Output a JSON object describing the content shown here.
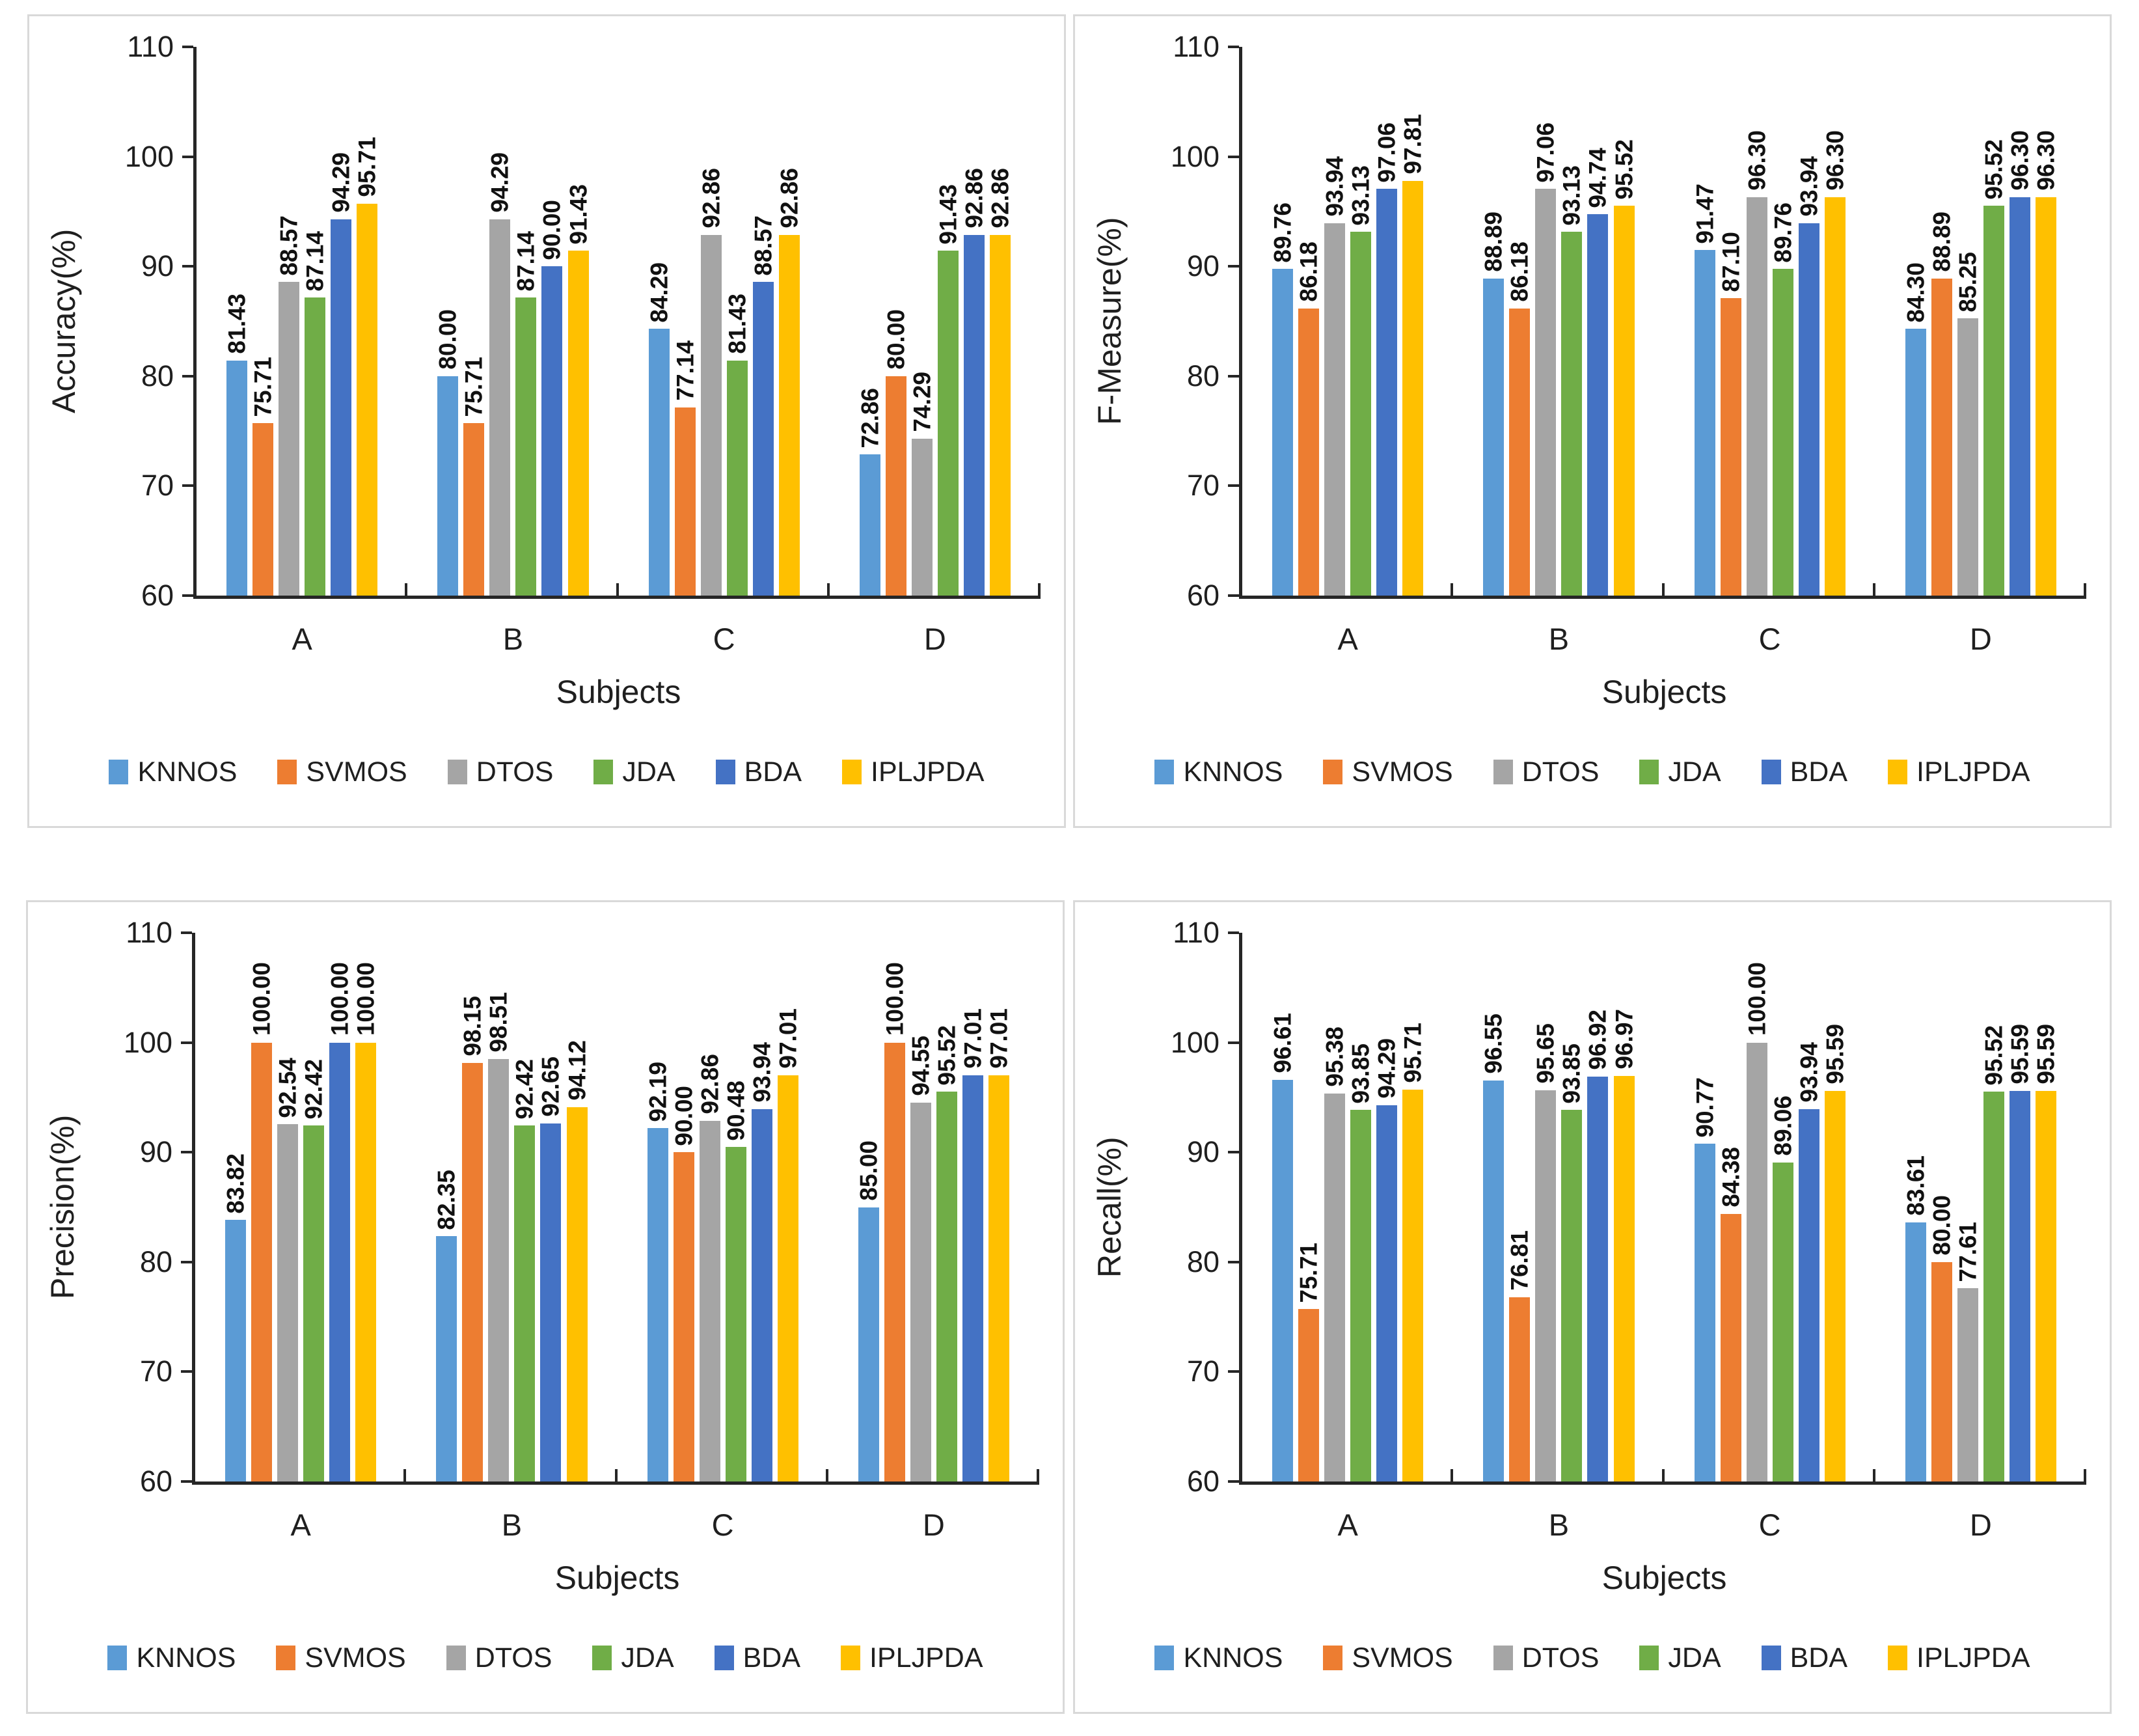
{
  "figure": {
    "x_axis_label": "Subjects",
    "categories": [
      "A",
      "B",
      "C",
      "D"
    ],
    "y_ticks": [
      "110",
      "100",
      "90",
      "80",
      "70",
      "60"
    ],
    "ylim": [
      60,
      110
    ],
    "series_names": [
      "KNNOS",
      "SVMOS",
      "DTOS",
      "JDA",
      "BDA",
      "IPLJPDA"
    ],
    "series_colors": [
      "#5B9BD5",
      "#ED7D31",
      "#A5A5A5",
      "#70AD47",
      "#4472C4",
      "#FFC000"
    ],
    "axis_color": "#262626",
    "panel_border_color": "#d9d9d9"
  },
  "chart_data": [
    {
      "type": "bar",
      "name": "accuracy",
      "ylabel": "Accuracy(%)",
      "xlabel": "Subjects",
      "categories": [
        "A",
        "B",
        "C",
        "D"
      ],
      "ylim": [
        60,
        110
      ],
      "grid": false,
      "legend_position": "bottom",
      "value_label_format": "2dp",
      "series": [
        {
          "name": "KNNOS",
          "color": "#5B9BD5",
          "values": [
            81.43,
            80.0,
            84.29,
            72.86
          ]
        },
        {
          "name": "SVMOS",
          "color": "#ED7D31",
          "values": [
            75.71,
            75.71,
            77.14,
            80.0
          ]
        },
        {
          "name": "DTOS",
          "color": "#A5A5A5",
          "values": [
            88.57,
            94.29,
            92.86,
            74.29
          ]
        },
        {
          "name": "JDA",
          "color": "#70AD47",
          "values": [
            87.14,
            87.14,
            81.43,
            91.43
          ]
        },
        {
          "name": "BDA",
          "color": "#4472C4",
          "values": [
            94.29,
            90.0,
            88.57,
            92.86
          ]
        },
        {
          "name": "IPLJPDA",
          "color": "#FFC000",
          "values": [
            95.71,
            91.43,
            92.86,
            92.86
          ]
        }
      ]
    },
    {
      "type": "bar",
      "name": "f-measure",
      "ylabel": "F-Measure(%)",
      "xlabel": "Subjects",
      "categories": [
        "A",
        "B",
        "C",
        "D"
      ],
      "ylim": [
        60,
        110
      ],
      "grid": false,
      "legend_position": "bottom",
      "value_label_format": "2dp",
      "series": [
        {
          "name": "KNNOS",
          "color": "#5B9BD5",
          "values": [
            89.76,
            88.89,
            91.47,
            84.3
          ]
        },
        {
          "name": "SVMOS",
          "color": "#ED7D31",
          "values": [
            86.18,
            86.18,
            87.1,
            88.89
          ]
        },
        {
          "name": "DTOS",
          "color": "#A5A5A5",
          "values": [
            93.94,
            97.06,
            96.3,
            85.25
          ]
        },
        {
          "name": "JDA",
          "color": "#70AD47",
          "values": [
            93.13,
            93.13,
            89.76,
            95.52
          ]
        },
        {
          "name": "BDA",
          "color": "#4472C4",
          "values": [
            97.06,
            94.74,
            93.94,
            96.3
          ]
        },
        {
          "name": "IPLJPDA",
          "color": "#FFC000",
          "values": [
            97.81,
            95.52,
            96.3,
            96.3
          ]
        }
      ]
    },
    {
      "type": "bar",
      "name": "precision",
      "ylabel": "Precision(%)",
      "xlabel": "Subjects",
      "categories": [
        "A",
        "B",
        "C",
        "D"
      ],
      "ylim": [
        60,
        110
      ],
      "grid": false,
      "legend_position": "bottom",
      "value_label_format": "2dp",
      "series": [
        {
          "name": "KNNOS",
          "color": "#5B9BD5",
          "values": [
            83.82,
            82.35,
            92.19,
            85.0
          ]
        },
        {
          "name": "SVMOS",
          "color": "#ED7D31",
          "values": [
            100.0,
            98.15,
            90.0,
            100.0
          ]
        },
        {
          "name": "DTOS",
          "color": "#A5A5A5",
          "values": [
            92.54,
            98.51,
            92.86,
            94.55
          ]
        },
        {
          "name": "JDA",
          "color": "#70AD47",
          "values": [
            92.42,
            92.42,
            90.48,
            95.52
          ]
        },
        {
          "name": "BDA",
          "color": "#4472C4",
          "values": [
            100.0,
            92.65,
            93.94,
            97.01
          ]
        },
        {
          "name": "IPLJPDA",
          "color": "#FFC000",
          "values": [
            100.0,
            94.12,
            97.01,
            97.01
          ]
        }
      ]
    },
    {
      "type": "bar",
      "name": "recall",
      "ylabel": "Recall(%)",
      "xlabel": "Subjects",
      "categories": [
        "A",
        "B",
        "C",
        "D"
      ],
      "ylim": [
        60,
        110
      ],
      "grid": false,
      "legend_position": "bottom",
      "value_label_format": "2dp",
      "series": [
        {
          "name": "KNNOS",
          "color": "#5B9BD5",
          "values": [
            96.61,
            96.55,
            90.77,
            83.61
          ]
        },
        {
          "name": "SVMOS",
          "color": "#ED7D31",
          "values": [
            75.71,
            76.81,
            84.38,
            80.0
          ]
        },
        {
          "name": "DTOS",
          "color": "#A5A5A5",
          "values": [
            95.38,
            95.65,
            100.0,
            77.61
          ]
        },
        {
          "name": "JDA",
          "color": "#70AD47",
          "values": [
            93.85,
            93.85,
            89.06,
            95.52
          ]
        },
        {
          "name": "BDA",
          "color": "#4472C4",
          "values": [
            94.29,
            96.92,
            93.94,
            95.59
          ]
        },
        {
          "name": "IPLJPDA",
          "color": "#FFC000",
          "values": [
            95.71,
            96.97,
            95.59,
            95.59
          ]
        }
      ]
    }
  ]
}
